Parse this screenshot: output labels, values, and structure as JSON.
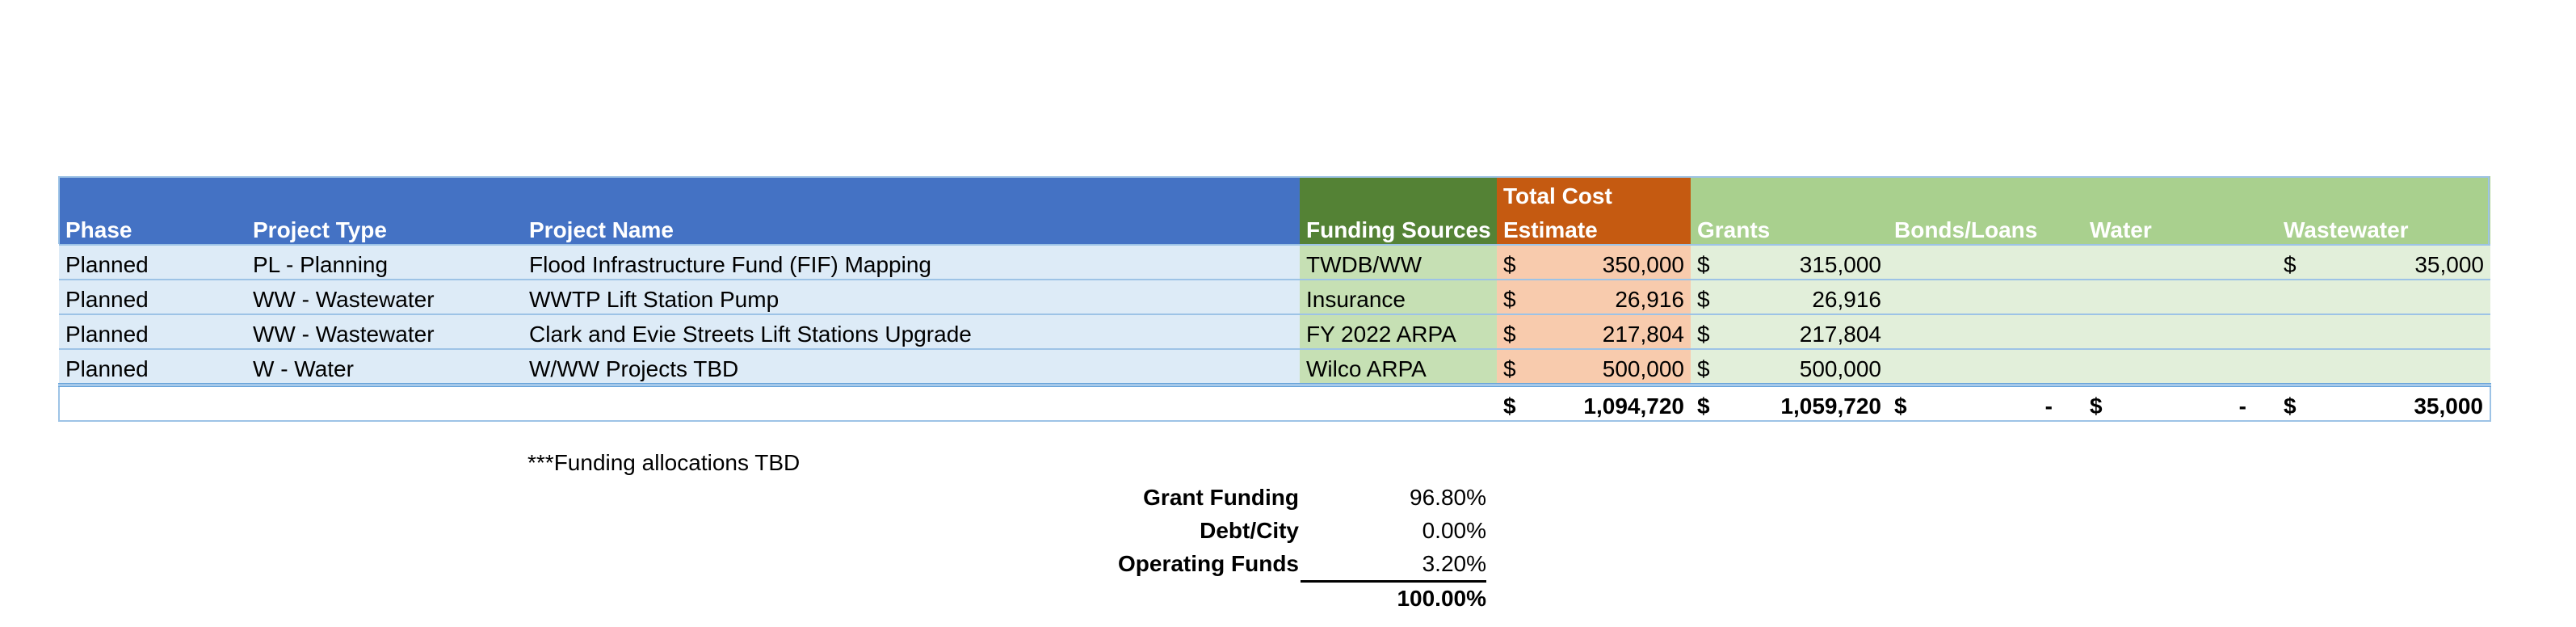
{
  "headers": {
    "phase": "Phase",
    "project_type": "Project Type",
    "project_name": "Project Name",
    "funding_sources": "Funding Sources",
    "total_cost_line1": "Total Cost",
    "total_cost_line2": "Estimate",
    "grants": "Grants",
    "bonds_loans": "Bonds/Loans",
    "water": "Water",
    "wastewater": "Wastewater"
  },
  "rows": [
    {
      "phase": "Planned",
      "type": "PL - Planning",
      "name": "Flood Infrastructure Fund (FIF) Mapping",
      "source": "TWDB/WW",
      "cost": "350,000",
      "grants": "315,000",
      "bonds": "",
      "water": "",
      "wastewater": "35,000"
    },
    {
      "phase": "Planned",
      "type": "WW - Wastewater",
      "name": "WWTP Lift Station Pump",
      "source": "Insurance",
      "cost": "26,916",
      "grants": "26,916",
      "bonds": "",
      "water": "",
      "wastewater": ""
    },
    {
      "phase": "Planned",
      "type": "WW - Wastewater",
      "name": "Clark and Evie Streets Lift Stations Upgrade",
      "source": "FY 2022 ARPA",
      "cost": "217,804",
      "grants": "217,804",
      "bonds": "",
      "water": "",
      "wastewater": ""
    },
    {
      "phase": "Planned",
      "type": "W - Water",
      "name": "W/WW Projects TBD",
      "source": "Wilco ARPA",
      "cost": "500,000",
      "grants": "500,000",
      "bonds": "",
      "water": "",
      "wastewater": ""
    }
  ],
  "currency_symbol": "$",
  "totals": {
    "cost": "1,094,720",
    "grants": "1,059,720",
    "bonds": "-",
    "water": "-",
    "wastewater": "35,000"
  },
  "note": "***Funding allocations TBD",
  "summary": [
    {
      "label": "Grant Funding",
      "value": "96.80%"
    },
    {
      "label": "Debt/City",
      "value": "0.00%"
    },
    {
      "label": "Operating Funds",
      "value": "3.20%"
    }
  ],
  "summary_total": "100.00%",
  "colors": {
    "header_blue": "#4472c4",
    "header_green_dark": "#548235",
    "header_orange": "#c55a11",
    "header_green_light": "#a9d08e",
    "row_blue": "#ddebf7",
    "row_green": "#c6e0b4",
    "row_orange": "#f8cbad",
    "row_light_green": "#e2efda"
  }
}
